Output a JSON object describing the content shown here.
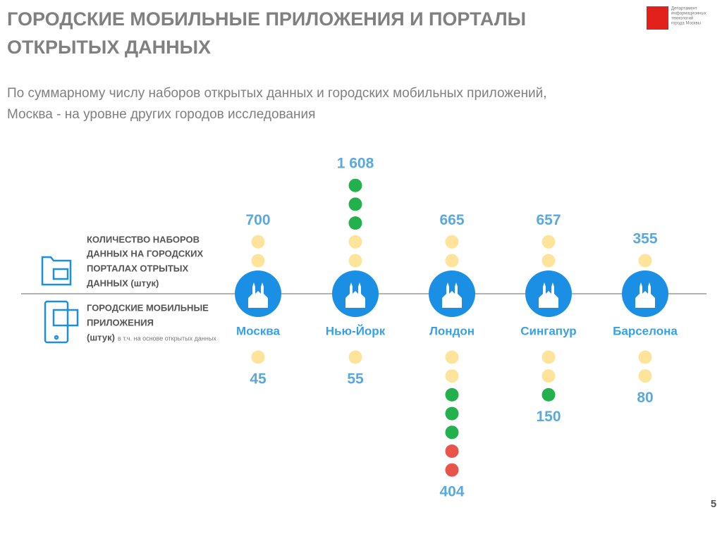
{
  "header": {
    "title": [
      "ГОРОДСКИЕ МОБИЛЬНЫЕ ПРИЛОЖЕНИЯ И ПОРТАЛЫ",
      "ОТКРЫТЫХ ДАННЫХ"
    ],
    "subtitle": [
      "По суммарному числу наборов открытых данных и городских мобильных приложений,",
      "Москва - на уровне других городов исследования"
    ],
    "logo": [
      "Департамент",
      "информационных",
      "технологий",
      "города Москвы"
    ]
  },
  "legend": {
    "datasets": [
      "КОЛИЧЕСТВО НАБОРОВ",
      "ДАННЫХ НА ГОРОДСКИХ",
      "ПОРТАЛАХ ОТРЫТЫХ",
      "ДАННЫХ (штук)"
    ],
    "apps": [
      "ГОРОДСКИЕ МОБИЛЬНЫЕ",
      "ПРИЛОЖЕНИЯ",
      "(штук)"
    ],
    "apps_note": "в т.ч. на основе открытых данных"
  },
  "cities": [
    {
      "name": "Москва",
      "datasets": "700",
      "apps": "45",
      "dataset_dots": [
        "#fde49a",
        "#fde49a"
      ],
      "app_dots": [
        "#fde49a"
      ]
    },
    {
      "name": "Нью-Йорк",
      "datasets": "1 608",
      "apps": "55",
      "dataset_dots": [
        "#22b14c",
        "#22b14c",
        "#22b14c",
        "#fde49a",
        "#fde49a"
      ],
      "app_dots": [
        "#fde49a"
      ]
    },
    {
      "name": "Лондон",
      "datasets": "665",
      "apps": "404",
      "dataset_dots": [
        "#fde49a",
        "#fde49a"
      ],
      "app_dots": [
        "#fde49a",
        "#fde49a",
        "#22b14c",
        "#22b14c",
        "#22b14c",
        "#e8534a",
        "#e8534a"
      ]
    },
    {
      "name": "Сингапур",
      "datasets": "657",
      "apps": "150",
      "dataset_dots": [
        "#fde49a",
        "#fde49a"
      ],
      "app_dots": [
        "#fde49a",
        "#fde49a",
        "#22b14c"
      ]
    },
    {
      "name": "Барселона",
      "datasets": "355",
      "apps": "80",
      "dataset_dots": [
        "#fde49a"
      ],
      "app_dots": [
        "#fde49a",
        "#fde49a"
      ]
    }
  ],
  "page_number": "5"
}
